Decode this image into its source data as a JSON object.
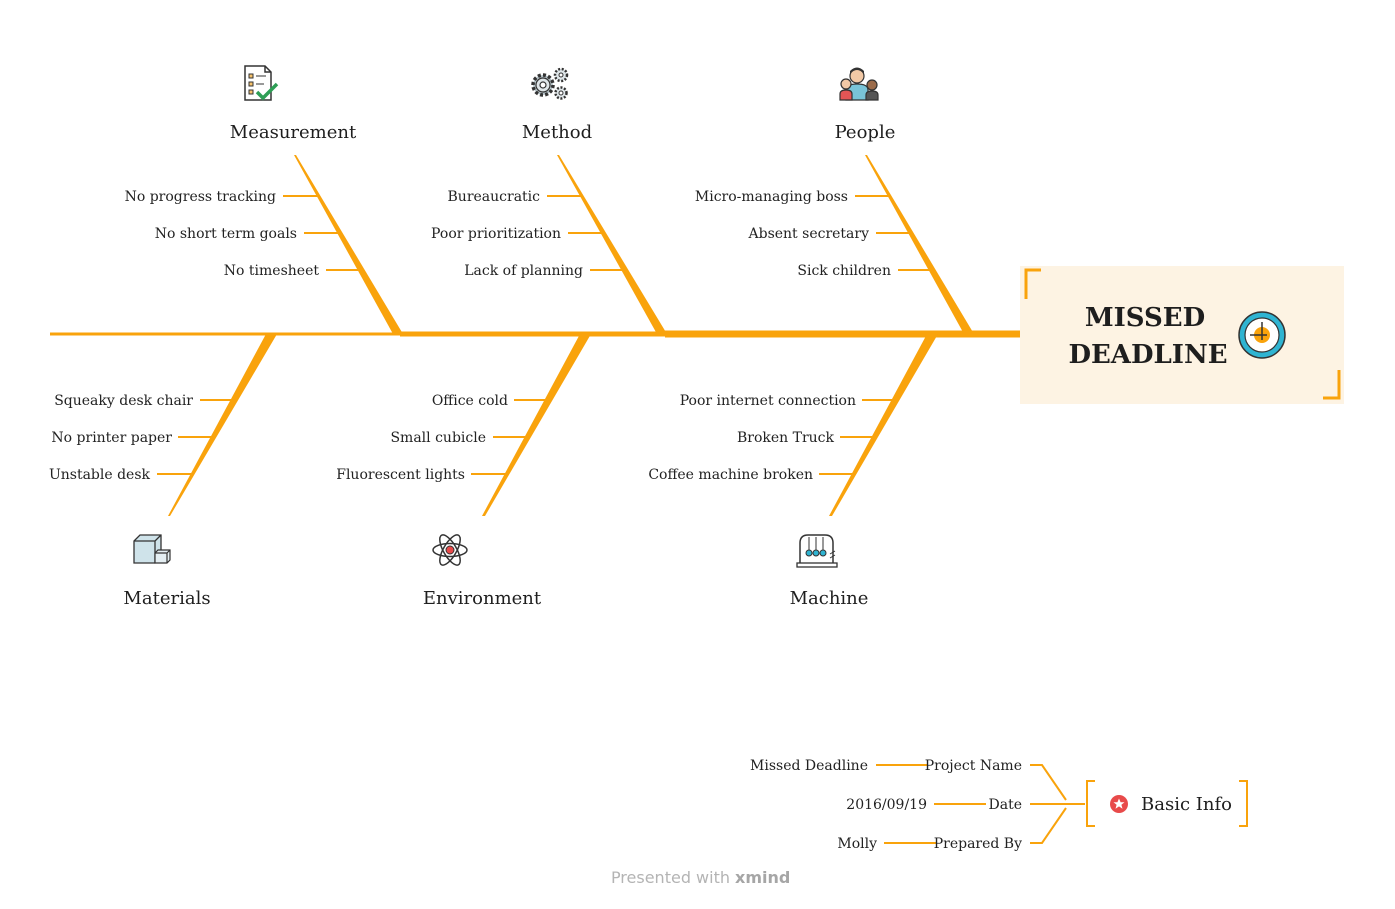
{
  "colors": {
    "bone": "#f9a30c",
    "head_bg": "#fdf3e3",
    "accent_red": "#e84a4a",
    "text": "#222222"
  },
  "head": {
    "line1": "MISSED",
    "line2": "DEADLINE",
    "icon": "clock-icon"
  },
  "categories": [
    {
      "label": "Measurement",
      "icon": "checklist-icon",
      "causes": [
        "No progress tracking",
        "No short term goals",
        "No timesheet"
      ]
    },
    {
      "label": "Method",
      "icon": "gears-icon",
      "causes": [
        "Bureaucratic",
        "Poor prioritization",
        "Lack of planning"
      ]
    },
    {
      "label": "People",
      "icon": "people-icon",
      "causes": [
        "Micro-managing boss",
        "Absent secretary",
        "Sick children"
      ]
    },
    {
      "label": "Materials",
      "icon": "boxes-icon",
      "causes": [
        "Squeaky desk chair",
        "No printer paper",
        "Unstable desk"
      ]
    },
    {
      "label": "Environment",
      "icon": "atom-icon",
      "causes": [
        "Office cold",
        "Small cubicle",
        "Fluorescent lights"
      ]
    },
    {
      "label": "Machine",
      "icon": "newtons-cradle-icon",
      "causes": [
        "Poor internet connection",
        "Broken Truck",
        "Coffee machine broken"
      ]
    }
  ],
  "basic_info": {
    "title": "Basic Info",
    "icon": "star-badge-icon",
    "rows": [
      {
        "key": "Project Name",
        "value": "Missed Deadline"
      },
      {
        "key": "Date",
        "value": "2016/09/19"
      },
      {
        "key": "Prepared By",
        "value": "Molly"
      }
    ]
  },
  "footer": {
    "prefix": "Presented with",
    "brand": "xmind"
  }
}
